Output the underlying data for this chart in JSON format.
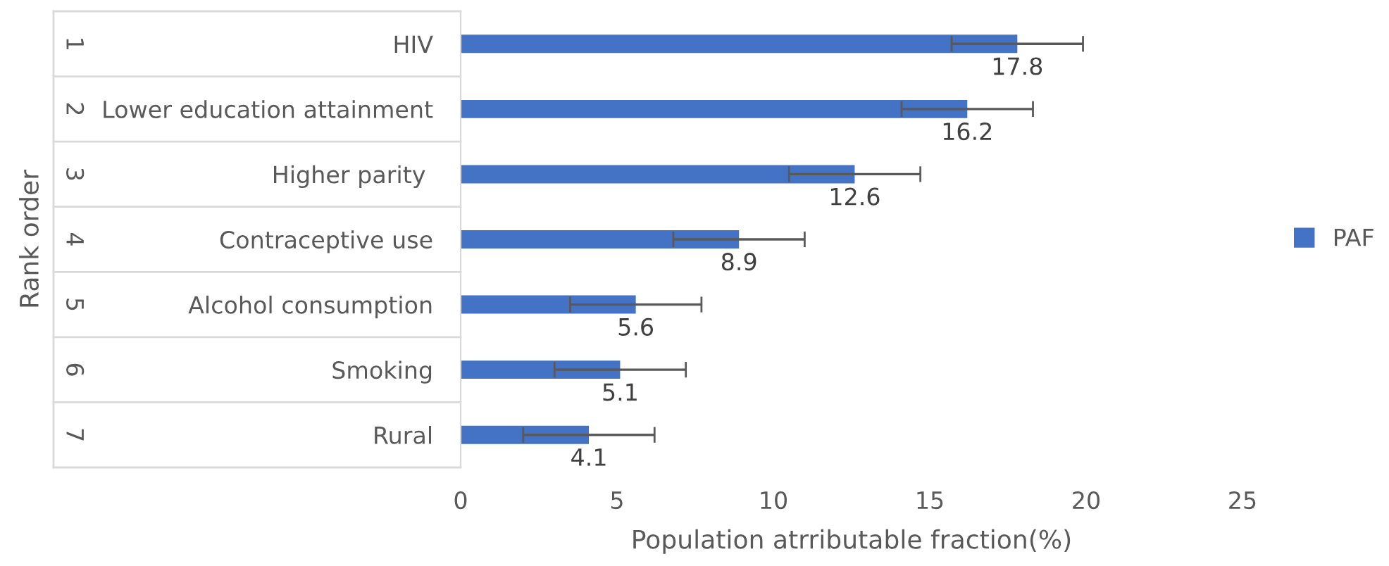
{
  "chart_data": {
    "type": "bar",
    "orientation": "horizontal",
    "categories": [
      "HIV",
      "Lower education attainment",
      "Higher parity ",
      "Contraceptive use",
      "Alcohol consumption",
      "Smoking",
      "Rural"
    ],
    "series": [
      {
        "name": "PAF",
        "color": "#4472c4",
        "values": [
          17.8,
          16.2,
          12.6,
          8.9,
          5.6,
          5.1,
          4.1
        ],
        "errors": [
          2.1,
          2.1,
          2.1,
          2.1,
          2.1,
          2.1,
          2.1
        ]
      }
    ],
    "data_labels": true,
    "xlim": [
      0,
      25
    ],
    "xticks": [
      0,
      5,
      10,
      15,
      20,
      25
    ],
    "xlabel": "Population atrributable fraction(%)",
    "ylabel": "Rank order",
    "annotations": [
      "1",
      "2",
      "3",
      "4",
      "5",
      "6",
      "7"
    ],
    "legend": "right",
    "grid": false
  }
}
